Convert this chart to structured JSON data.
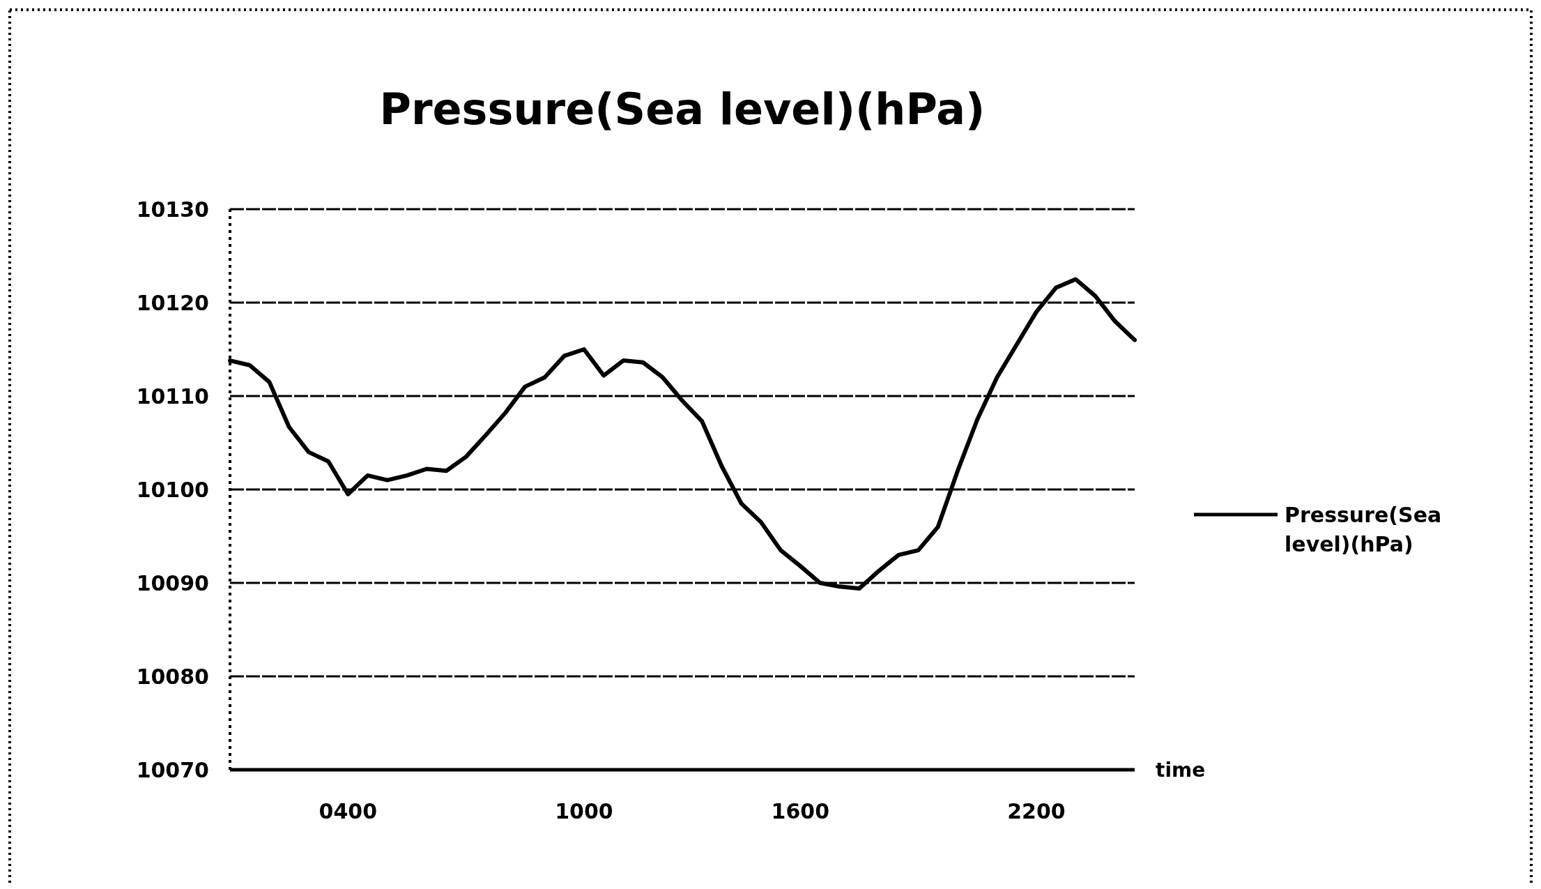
{
  "chart_data": {
    "type": "line",
    "title": "Pressure(Sea level)(hPa)",
    "xlabel": "time",
    "categories": [
      null,
      null,
      null,
      null,
      null,
      null,
      "0400",
      null,
      null,
      null,
      null,
      null,
      null,
      null,
      null,
      null,
      null,
      null,
      "1000",
      null,
      null,
      null,
      null,
      null,
      null,
      null,
      null,
      null,
      null,
      "1600",
      null,
      null,
      null,
      null,
      null,
      null,
      null,
      null,
      null,
      null,
      null,
      "2200",
      null,
      null,
      null,
      null,
      null
    ],
    "series": [
      {
        "name": "Pressure(Sea level)(hPa)",
        "color": "#000000",
        "values": [
          10113.8,
          10113.3,
          10111.5,
          10106.7,
          10104.0,
          10103.0,
          10099.5,
          10101.5,
          10101.0,
          10101.5,
          10102.2,
          10102.0,
          10103.5,
          10105.8,
          10108.2,
          10111.0,
          10112.0,
          10114.3,
          10115.0,
          10112.2,
          10113.8,
          10113.6,
          10112.0,
          10109.5,
          10107.3,
          10102.5,
          10098.5,
          10096.5,
          10093.5,
          10091.8,
          10090.0,
          10089.6,
          10089.4,
          10091.3,
          10093.0,
          10093.5,
          10096.0,
          10102.0,
          10107.5,
          10112.0,
          10115.5,
          10119.0,
          10121.6,
          10122.5,
          10120.7,
          10118.0,
          10116.0
        ]
      }
    ],
    "ylim": [
      10070,
      10130
    ],
    "yticks": [
      10070,
      10080,
      10090,
      10100,
      10110,
      10120,
      10130
    ],
    "grid": "y",
    "legend": "right",
    "marker": "none",
    "line_style": "solid"
  }
}
